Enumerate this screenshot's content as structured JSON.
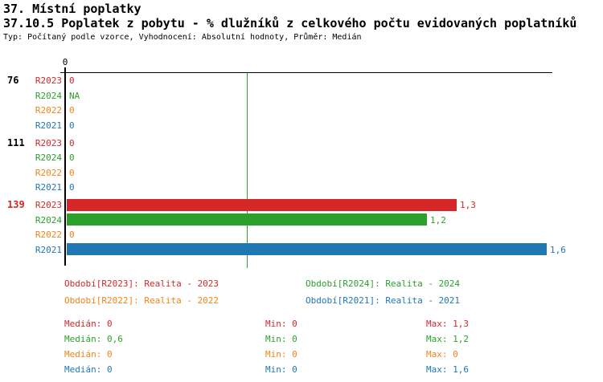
{
  "header": {
    "title": "37. Místní poplatky",
    "subtitle": "37.10.5 Poplatek z pobytu - % dlužníků z celkového počtu evidovaných poplatníků",
    "meta": "Typ: Počítaný podle vzorce, Vyhodnocení: Absolutní hodnoty, Průměr: Medián"
  },
  "colors": {
    "R2023": "#D62728",
    "R2024": "#2CA02C",
    "R2022": "#F28419",
    "R2021": "#1F77B4",
    "axis": "#000000",
    "median_line": "#2CA02C",
    "group_label_default": "#000000",
    "group_label_highlight": "#D62728"
  },
  "chart_data": {
    "type": "bar",
    "orientation": "horizontal",
    "value_axis": {
      "origin_label": "0",
      "median_line_value": 0.6,
      "max_value": 1.6,
      "grid": "off"
    },
    "series_order": [
      "R2023",
      "R2024",
      "R2022",
      "R2021"
    ],
    "groups": [
      {
        "label": "76",
        "highlight": false,
        "rows": [
          {
            "series": "R2023",
            "value": 0,
            "value_text": "0"
          },
          {
            "series": "R2024",
            "value": null,
            "value_text": "NA"
          },
          {
            "series": "R2022",
            "value": 0,
            "value_text": "0"
          },
          {
            "series": "R2021",
            "value": 0,
            "value_text": "0"
          }
        ]
      },
      {
        "label": "111",
        "highlight": false,
        "rows": [
          {
            "series": "R2023",
            "value": 0,
            "value_text": "0"
          },
          {
            "series": "R2024",
            "value": 0,
            "value_text": "0"
          },
          {
            "series": "R2022",
            "value": 0,
            "value_text": "0"
          },
          {
            "series": "R2021",
            "value": 0,
            "value_text": "0"
          }
        ]
      },
      {
        "label": "139",
        "highlight": true,
        "rows": [
          {
            "series": "R2023",
            "value": 1.3,
            "value_text": "1,3"
          },
          {
            "series": "R2024",
            "value": 1.2,
            "value_text": "1,2"
          },
          {
            "series": "R2022",
            "value": 0,
            "value_text": "0"
          },
          {
            "series": "R2021",
            "value": 1.6,
            "value_text": "1,6"
          }
        ]
      }
    ]
  },
  "legend": {
    "items": [
      {
        "series": "R2023",
        "label": "Období[R2023]: Realita - 2023"
      },
      {
        "series": "R2024",
        "label": "Období[R2024]: Realita - 2024"
      },
      {
        "series": "R2022",
        "label": "Období[R2022]: Realita - 2022"
      },
      {
        "series": "R2021",
        "label": "Období[R2021]: Realita - 2021"
      }
    ]
  },
  "stats": {
    "rows": [
      {
        "series": "R2023",
        "median": "Medián: 0",
        "min": "Min: 0",
        "max": "Max: 1,3"
      },
      {
        "series": "R2024",
        "median": "Medián: 0,6",
        "min": "Min: 0",
        "max": "Max: 1,2"
      },
      {
        "series": "R2022",
        "median": "Medián: 0",
        "min": "Min: 0",
        "max": "Max: 0"
      },
      {
        "series": "R2021",
        "median": "Medián: 0",
        "min": "Min: 0",
        "max": "Max: 1,6"
      }
    ]
  }
}
